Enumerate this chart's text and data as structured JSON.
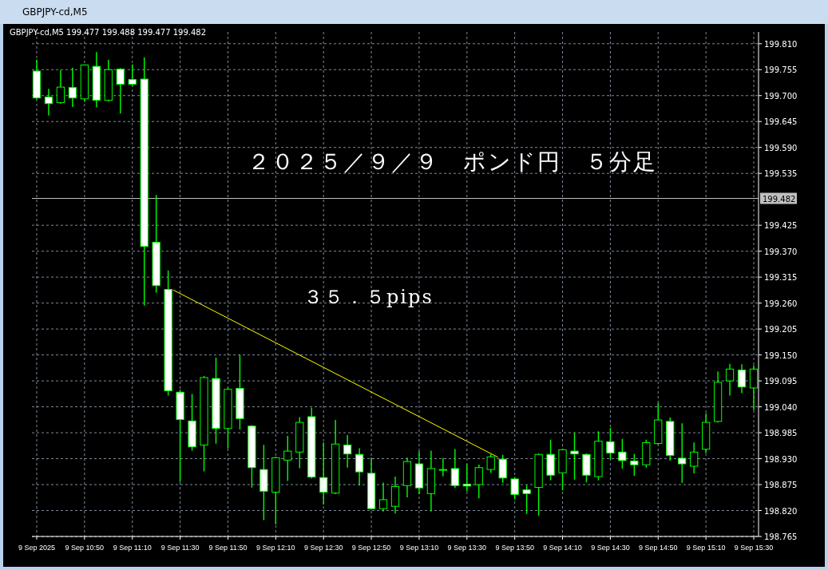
{
  "chart_data": {
    "type": "candlestick",
    "title": "GBPJPY-cd,M5",
    "subtitle": "GBPJPY-cd,M5  199.477 199.488 199.477 199.482",
    "annotations": [
      "２０２５／９／９　ポンド円　５分足",
      "３５．５pips"
    ],
    "xlim": [
      "2025-09-09T10:28",
      "2025-09-09T15:32"
    ],
    "xticks": [
      {
        "value": "2025-09-09T10:30",
        "label": "9 Sep 2025"
      },
      {
        "value": "2025-09-09T10:50",
        "label": "9 Sep 10:50"
      },
      {
        "value": "2025-09-09T11:10",
        "label": "9 Sep 11:10"
      },
      {
        "value": "2025-09-09T11:30",
        "label": "9 Sep 11:30"
      },
      {
        "value": "2025-09-09T11:50",
        "label": "9 Sep 11:50"
      },
      {
        "value": "2025-09-09T12:10",
        "label": "9 Sep 12:10"
      },
      {
        "value": "2025-09-09T12:30",
        "label": "9 Sep 12:30"
      },
      {
        "value": "2025-09-09T12:50",
        "label": "9 Sep 12:50"
      },
      {
        "value": "2025-09-09T13:10",
        "label": "9 Sep 13:10"
      },
      {
        "value": "2025-09-09T13:30",
        "label": "9 Sep 13:30"
      },
      {
        "value": "2025-09-09T13:50",
        "label": "9 Sep 13:50"
      },
      {
        "value": "2025-09-09T14:10",
        "label": "9 Sep 14:10"
      },
      {
        "value": "2025-09-09T14:30",
        "label": "9 Sep 14:30"
      },
      {
        "value": "2025-09-09T14:50",
        "label": "9 Sep 14:50"
      },
      {
        "value": "2025-09-09T15:10",
        "label": "9 Sep 15:10"
      },
      {
        "value": "2025-09-09T15:30",
        "label": "9 Sep 15:30"
      }
    ],
    "ylim": [
      198.765,
      199.835
    ],
    "yticks": [
      {
        "value": 198.765,
        "label": "198.765"
      },
      {
        "value": 198.82,
        "label": "198.820"
      },
      {
        "value": 198.875,
        "label": "198.875"
      },
      {
        "value": 198.93,
        "label": "198.930"
      },
      {
        "value": 198.985,
        "label": "198.985"
      },
      {
        "value": 199.04,
        "label": "199.040"
      },
      {
        "value": 199.095,
        "label": "199.095"
      },
      {
        "value": 199.15,
        "label": "199.150"
      },
      {
        "value": 199.205,
        "label": "199.205"
      },
      {
        "value": 199.26,
        "label": "199.260"
      },
      {
        "value": 199.315,
        "label": "199.315"
      },
      {
        "value": 199.37,
        "label": "199.370"
      },
      {
        "value": 199.425,
        "label": "199.425"
      },
      {
        "value": 199.535,
        "label": "199.535"
      },
      {
        "value": 199.59,
        "label": "199.590"
      },
      {
        "value": 199.645,
        "label": "199.645"
      },
      {
        "value": 199.7,
        "label": "199.700"
      },
      {
        "value": 199.755,
        "label": "199.755"
      },
      {
        "value": 199.81,
        "label": "199.810"
      }
    ],
    "grid": true,
    "ref_lines": [
      {
        "axis": "y",
        "value": 199.482,
        "label": "199.482",
        "color": "#c0c0c0"
      }
    ],
    "series": [
      {
        "type": "candlestick",
        "color": "#00ff00",
        "x": [
          "2025-09-09T10:30",
          "2025-09-09T10:35",
          "2025-09-09T10:40",
          "2025-09-09T10:45",
          "2025-09-09T10:50",
          "2025-09-09T10:55",
          "2025-09-09T11:00",
          "2025-09-09T11:05",
          "2025-09-09T11:10",
          "2025-09-09T11:15",
          "2025-09-09T11:20",
          "2025-09-09T11:25",
          "2025-09-09T11:30",
          "2025-09-09T11:35",
          "2025-09-09T11:40",
          "2025-09-09T11:45",
          "2025-09-09T11:50",
          "2025-09-09T11:55",
          "2025-09-09T12:00",
          "2025-09-09T12:05",
          "2025-09-09T12:10",
          "2025-09-09T12:15",
          "2025-09-09T12:20",
          "2025-09-09T12:25",
          "2025-09-09T12:30",
          "2025-09-09T12:35",
          "2025-09-09T12:40",
          "2025-09-09T12:45",
          "2025-09-09T12:50",
          "2025-09-09T12:55",
          "2025-09-09T13:00",
          "2025-09-09T13:05",
          "2025-09-09T13:10",
          "2025-09-09T13:15",
          "2025-09-09T13:20",
          "2025-09-09T13:25",
          "2025-09-09T13:30",
          "2025-09-09T13:35",
          "2025-09-09T13:40",
          "2025-09-09T13:45",
          "2025-09-09T13:50",
          "2025-09-09T13:55",
          "2025-09-09T14:00",
          "2025-09-09T14:05",
          "2025-09-09T14:10",
          "2025-09-09T14:15",
          "2025-09-09T14:20",
          "2025-09-09T14:25",
          "2025-09-09T14:30",
          "2025-09-09T14:35",
          "2025-09-09T14:40",
          "2025-09-09T14:45",
          "2025-09-09T14:50",
          "2025-09-09T14:55",
          "2025-09-09T15:00",
          "2025-09-09T15:05",
          "2025-09-09T15:10",
          "2025-09-09T15:15",
          "2025-09-09T15:20",
          "2025-09-09T15:25",
          "2025-09-09T15:30"
        ],
        "ohlc": [
          [
            199.752,
            199.775,
            199.693,
            199.695
          ],
          [
            199.697,
            199.713,
            199.659,
            199.683
          ],
          [
            199.685,
            199.753,
            199.684,
            199.718
          ],
          [
            199.717,
            199.758,
            199.677,
            199.695
          ],
          [
            199.693,
            199.765,
            199.688,
            199.765
          ],
          [
            199.762,
            199.791,
            199.676,
            199.69
          ],
          [
            199.69,
            199.775,
            199.689,
            199.755
          ],
          [
            199.756,
            199.757,
            199.663,
            199.724
          ],
          [
            199.734,
            199.765,
            199.722,
            199.724
          ],
          [
            199.735,
            199.78,
            199.256,
            199.38
          ],
          [
            199.389,
            199.488,
            199.283,
            199.297
          ],
          [
            199.289,
            199.328,
            199.065,
            199.074
          ],
          [
            199.071,
            199.075,
            198.882,
            199.013
          ],
          [
            199.01,
            199.066,
            198.948,
            198.955
          ],
          [
            198.959,
            199.104,
            198.904,
            199.102
          ],
          [
            199.1,
            199.143,
            198.963,
            198.994
          ],
          [
            198.994,
            199.08,
            198.953,
            199.077
          ],
          [
            199.079,
            199.149,
            198.993,
            199.015
          ],
          [
            198.999,
            199.0,
            198.87,
            198.911
          ],
          [
            198.907,
            198.958,
            198.801,
            198.861
          ],
          [
            198.859,
            198.933,
            198.792,
            198.932
          ],
          [
            198.927,
            198.977,
            198.884,
            198.946
          ],
          [
            198.944,
            199.017,
            198.911,
            199.007
          ],
          [
            199.019,
            199.037,
            198.889,
            198.891
          ],
          [
            198.89,
            198.963,
            198.834,
            198.859
          ],
          [
            198.857,
            199.011,
            198.856,
            198.961
          ],
          [
            198.959,
            198.979,
            198.912,
            198.94
          ],
          [
            198.939,
            198.951,
            198.874,
            198.902
          ],
          [
            198.899,
            198.931,
            198.823,
            198.824
          ],
          [
            198.824,
            198.878,
            198.819,
            198.843
          ],
          [
            198.829,
            198.891,
            198.815,
            198.871
          ],
          [
            198.873,
            198.931,
            198.849,
            198.924
          ],
          [
            198.919,
            198.945,
            198.856,
            198.868
          ],
          [
            198.856,
            198.946,
            198.819,
            198.909
          ],
          [
            198.907,
            198.93,
            198.894,
            198.907
          ],
          [
            198.909,
            198.949,
            198.869,
            198.873
          ],
          [
            198.876,
            198.917,
            198.862,
            198.872
          ],
          [
            198.875,
            198.916,
            198.847,
            198.911
          ],
          [
            198.907,
            198.938,
            198.901,
            198.934
          ],
          [
            198.929,
            198.937,
            198.88,
            198.889
          ],
          [
            198.887,
            198.89,
            198.845,
            198.854
          ],
          [
            198.864,
            198.873,
            198.814,
            198.856
          ],
          [
            198.869,
            198.94,
            198.81,
            198.939
          ],
          [
            198.939,
            198.969,
            198.885,
            198.895
          ],
          [
            198.9,
            198.95,
            198.864,
            198.949
          ],
          [
            198.946,
            198.984,
            198.887,
            198.94
          ],
          [
            198.939,
            198.94,
            198.881,
            198.895
          ],
          [
            198.892,
            198.987,
            198.885,
            198.967
          ],
          [
            198.966,
            198.994,
            198.93,
            198.942
          ],
          [
            198.944,
            198.971,
            198.91,
            198.926
          ],
          [
            198.925,
            198.939,
            198.895,
            198.917
          ],
          [
            198.917,
            198.969,
            198.912,
            198.964
          ],
          [
            198.962,
            199.047,
            198.961,
            199.012
          ],
          [
            199.009,
            199.016,
            198.927,
            198.937
          ],
          [
            198.931,
            199.004,
            198.88,
            198.919
          ],
          [
            198.914,
            198.963,
            198.9,
            198.944
          ],
          [
            198.95,
            199.025,
            198.943,
            199.007
          ],
          [
            199.009,
            199.114,
            199.008,
            199.092
          ],
          [
            199.095,
            199.13,
            199.065,
            199.12
          ],
          [
            199.118,
            199.129,
            199.07,
            199.082
          ],
          [
            199.08,
            199.127,
            199.034,
            199.12
          ]
        ]
      },
      {
        "type": "line",
        "color": "#ffff00",
        "x": [
          "2025-09-09T11:27",
          "2025-09-09T13:43"
        ],
        "values": [
          199.288,
          198.933
        ]
      }
    ]
  }
}
